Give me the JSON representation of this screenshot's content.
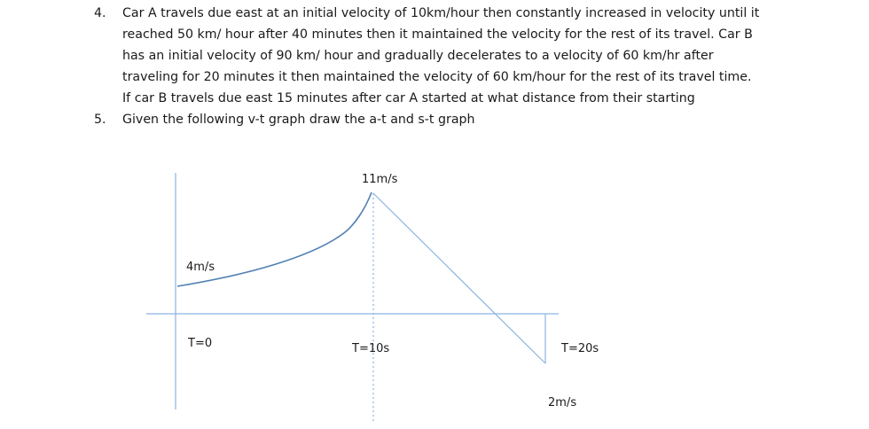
{
  "problems": [
    {
      "number": "4.",
      "lines": [
        "Car A travels due east at an initial velocity of 10km/hour then constantly increased in velocity until it",
        "reached 50 km/ hour after 40 minutes then it maintained the velocity for the rest of its travel. Car B",
        "has an initial velocity of 90 km/ hour and gradually decelerates to a velocity of 60 km/hr after",
        "traveling for 20 minutes it then maintained the velocity of 60 km/hour for the rest of its travel time.",
        "If car B travels due east 15 minutes after car A started at what distance from their starting"
      ]
    },
    {
      "number": "5.",
      "lines": [
        "Given the following v-t graph draw the a-t and s-t graph"
      ]
    }
  ],
  "graph": {
    "labels": {
      "v_initial": "4m/s",
      "v_peak": "11m/s",
      "v_final": "2m/s",
      "t_start": "T=0",
      "t_mid": "T=10s",
      "t_end": "T=20s"
    },
    "line_color": "#8db3e2",
    "curve_color": "#4f7fb3"
  }
}
